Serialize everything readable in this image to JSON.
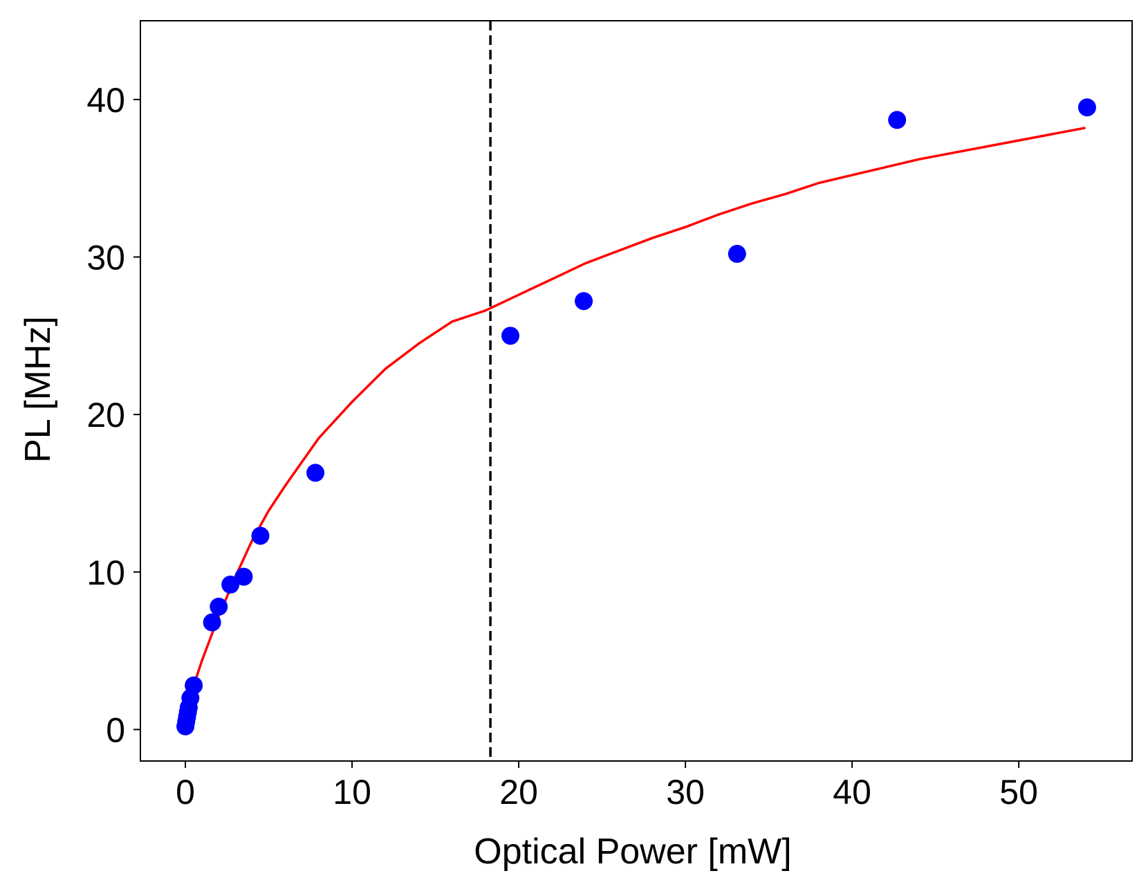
{
  "chart_data": {
    "type": "scatter",
    "title": "",
    "xlabel": "Optical Power [mW]",
    "ylabel": "PL [MHz]",
    "xlim": [
      -2.7,
      56.8
    ],
    "ylim": [
      -2.0,
      45.0
    ],
    "xticks": [
      0,
      10,
      20,
      30,
      40,
      50
    ],
    "yticks": [
      0,
      10,
      20,
      30,
      40
    ],
    "grid": false,
    "legend": "none",
    "series": [
      {
        "kind": "scatter",
        "color": "#0000ff",
        "x": [
          0.0,
          0.05,
          0.1,
          0.15,
          0.2,
          0.3,
          0.5,
          1.6,
          2.0,
          2.7,
          3.5,
          4.5,
          7.8,
          19.5,
          23.9,
          33.1,
          42.7,
          54.1
        ],
        "y": [
          0.2,
          0.5,
          0.8,
          1.1,
          1.4,
          2.0,
          2.8,
          6.8,
          7.8,
          9.2,
          9.7,
          12.3,
          16.3,
          25.0,
          27.2,
          30.2,
          38.7,
          39.5
        ]
      },
      {
        "kind": "line",
        "color": "#ff0000",
        "x": [
          0,
          1,
          2,
          3,
          4,
          5,
          6,
          8,
          10,
          12,
          14,
          16,
          18,
          20,
          22,
          24,
          26,
          28,
          30,
          32,
          34,
          36,
          38,
          40,
          42,
          44,
          46,
          48,
          50,
          52,
          54
        ],
        "y": [
          1.2,
          4.4,
          7.2,
          9.7,
          12.0,
          13.9,
          15.5,
          18.5,
          20.8,
          22.9,
          24.5,
          25.9,
          26.6,
          27.6,
          28.6,
          29.6,
          30.4,
          31.2,
          31.9,
          32.7,
          33.4,
          34.0,
          34.7,
          35.2,
          35.7,
          36.2,
          36.6,
          37.0,
          37.4,
          37.8,
          38.2
        ]
      }
    ],
    "vline": {
      "x": 18.3,
      "color": "#000000",
      "style": "dashed"
    }
  }
}
